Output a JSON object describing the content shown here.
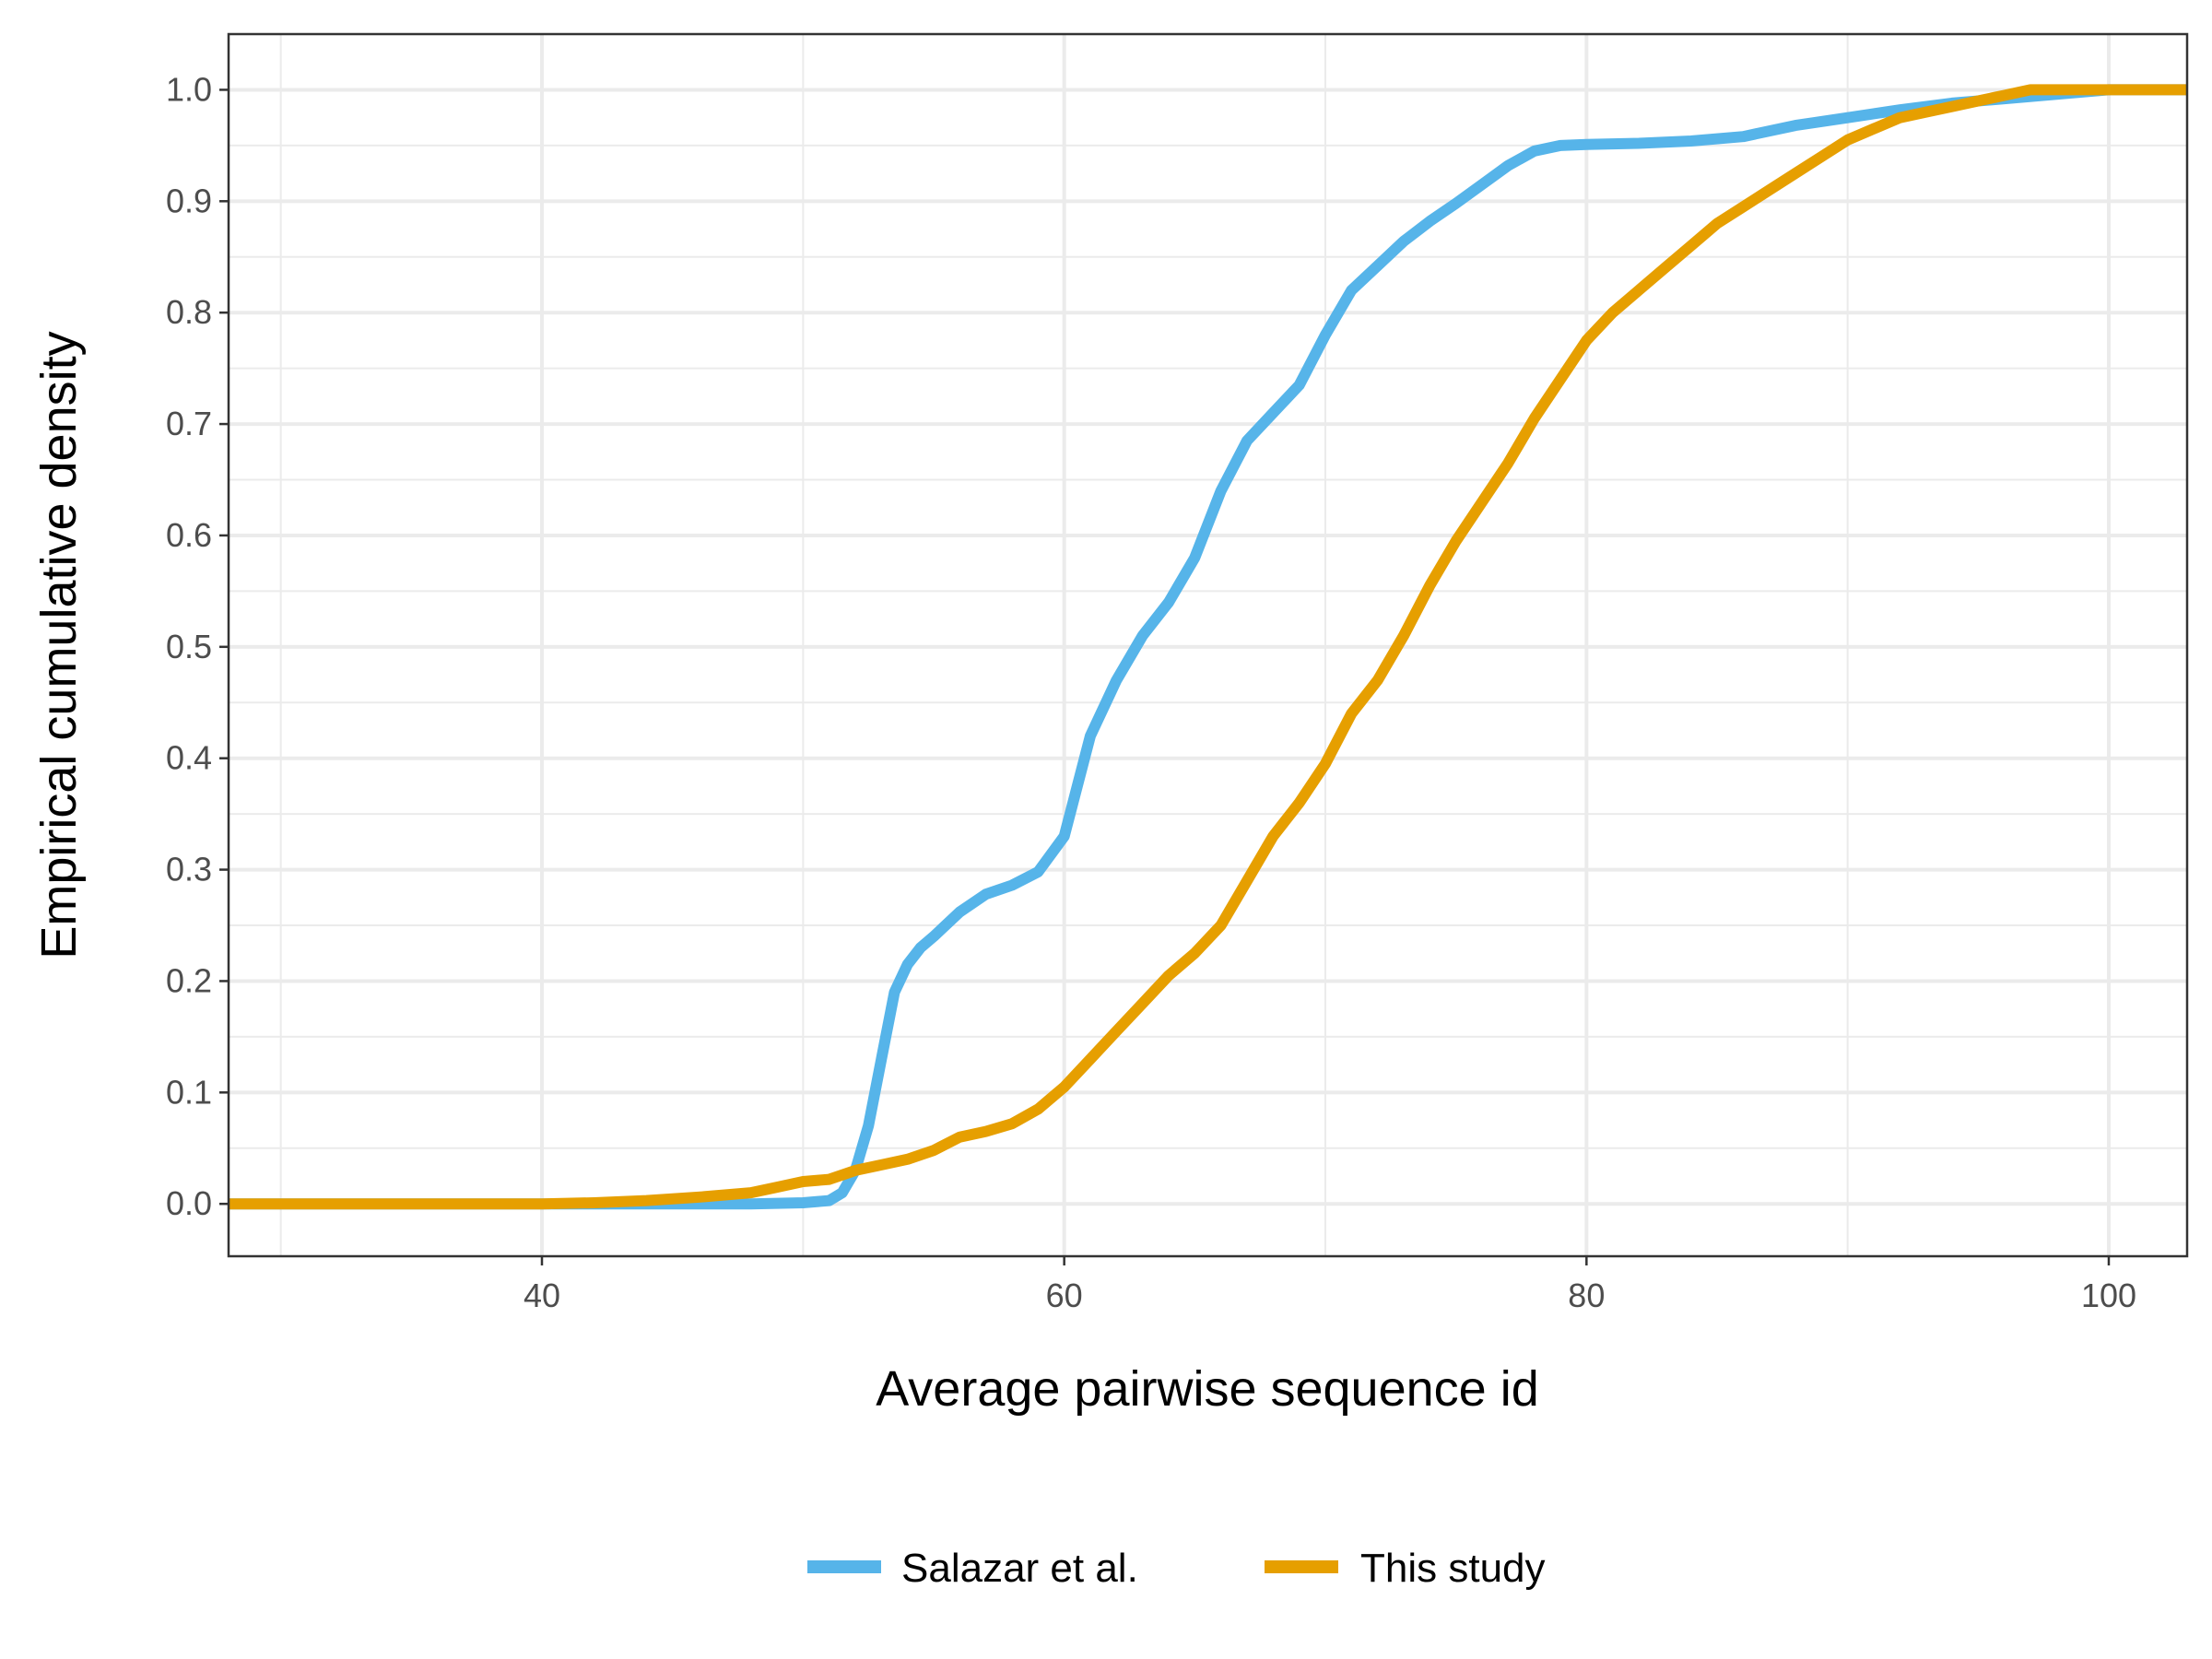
{
  "chart_data": {
    "type": "line",
    "xlabel": "Average pairwise sequence id",
    "ylabel": "Empirical cumulative density",
    "xlim": [
      28,
      103
    ],
    "ylim": [
      -0.047,
      1.05
    ],
    "x_ticks": [
      40,
      60,
      80,
      100
    ],
    "y_ticks": [
      0.0,
      0.1,
      0.2,
      0.3,
      0.4,
      0.5,
      0.6,
      0.7,
      0.8,
      0.9,
      1.0
    ],
    "x_tick_labels": [
      "40",
      "60",
      "80",
      "100"
    ],
    "y_tick_labels": [
      "0.0",
      "0.1",
      "0.2",
      "0.3",
      "0.4",
      "0.5",
      "0.6",
      "0.7",
      "0.8",
      "0.9",
      "1.0"
    ],
    "grid": true,
    "legend_position": "bottom",
    "series": [
      {
        "name": "Salazar et al.",
        "color": "#56B4E9",
        "x": [
          28,
          40,
          45,
          48,
          50,
          51,
          51.5,
          52,
          52.5,
          53,
          53.5,
          54,
          54.5,
          55,
          56,
          57,
          58,
          59,
          60,
          61,
          62,
          63,
          64,
          65,
          66,
          67,
          68,
          69,
          70,
          71,
          72,
          73,
          74,
          75,
          76,
          77,
          78,
          79,
          80,
          82,
          84,
          86,
          88,
          90,
          92,
          94,
          96,
          98,
          100,
          103
        ],
        "y": [
          0.0,
          0.0,
          0.0,
          0.0,
          0.001,
          0.003,
          0.01,
          0.03,
          0.07,
          0.13,
          0.19,
          0.215,
          0.23,
          0.24,
          0.262,
          0.278,
          0.286,
          0.298,
          0.33,
          0.42,
          0.47,
          0.51,
          0.54,
          0.58,
          0.64,
          0.685,
          0.71,
          0.735,
          0.78,
          0.82,
          0.842,
          0.864,
          0.882,
          0.898,
          0.915,
          0.932,
          0.945,
          0.95,
          0.951,
          0.952,
          0.954,
          0.958,
          0.968,
          0.975,
          0.982,
          0.988,
          0.992,
          0.996,
          1.0,
          1.0
        ]
      },
      {
        "name": "This study",
        "color": "#E69F00",
        "x": [
          28,
          40,
          42,
          44,
          46,
          48,
          49,
          50,
          51,
          52,
          53,
          54,
          55,
          56,
          57,
          58,
          59,
          60,
          61,
          62,
          63,
          64,
          65,
          66,
          67,
          68,
          69,
          70,
          71,
          72,
          73,
          74,
          75,
          76,
          77,
          78,
          79,
          80,
          81,
          82,
          83,
          84,
          85,
          86,
          87,
          88,
          89,
          90,
          91,
          92,
          93,
          94,
          95,
          96,
          97,
          98,
          99,
          100,
          103
        ],
        "y": [
          0.0,
          0.0,
          0.001,
          0.003,
          0.006,
          0.01,
          0.015,
          0.02,
          0.022,
          0.03,
          0.035,
          0.04,
          0.048,
          0.06,
          0.065,
          0.072,
          0.085,
          0.105,
          0.13,
          0.155,
          0.18,
          0.205,
          0.225,
          0.25,
          0.29,
          0.33,
          0.36,
          0.395,
          0.44,
          0.47,
          0.51,
          0.555,
          0.595,
          0.63,
          0.665,
          0.705,
          0.74,
          0.775,
          0.8,
          0.82,
          0.84,
          0.86,
          0.88,
          0.895,
          0.91,
          0.925,
          0.94,
          0.955,
          0.965,
          0.975,
          0.98,
          0.985,
          0.99,
          0.995,
          1.0,
          1.0,
          1.0,
          1.0,
          1.0
        ]
      }
    ]
  }
}
